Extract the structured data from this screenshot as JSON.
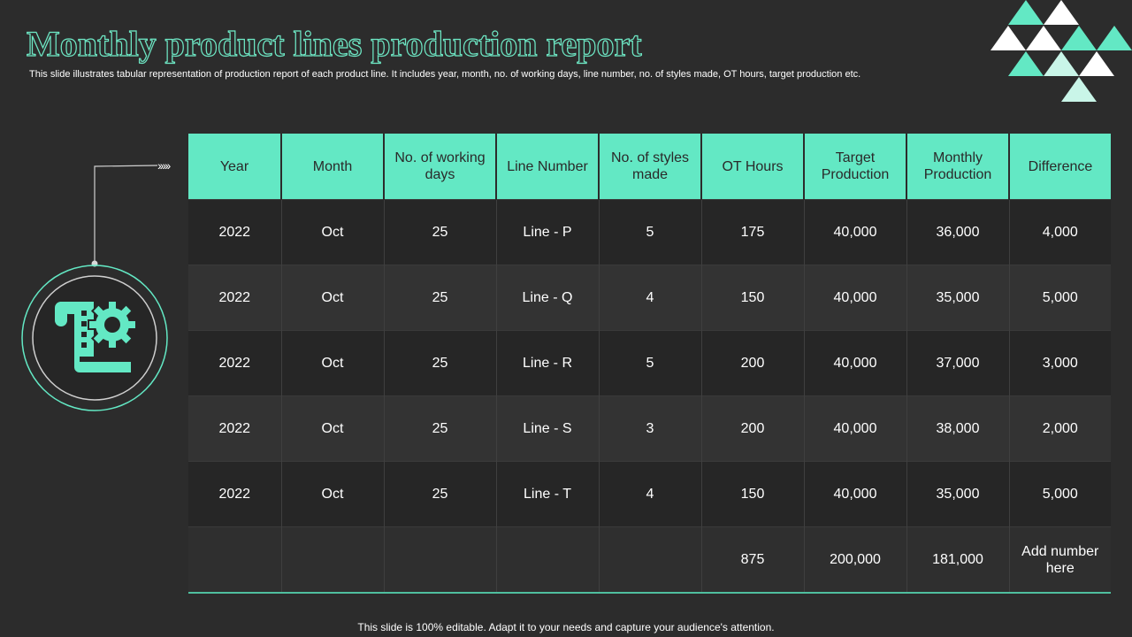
{
  "header": {
    "title": "Monthly product lines production report",
    "subtitle": "This slide illustrates tabular representation of production report of each product line. It includes year, month, no. of working days, line number, no. of styles made, OT hours, target production etc."
  },
  "colors": {
    "accent": "#63e8c4",
    "background": "#2c2c2c",
    "accent_light": "#c9f5e8"
  },
  "decoration": {
    "icon": "production-report-gear-icon",
    "pattern": "triangle-pattern"
  },
  "table": {
    "columns": [
      "Year",
      "Month",
      "No. of working days",
      "Line Number",
      "No. of styles made",
      "OT Hours",
      "Target Production",
      "Monthly Production",
      "Difference"
    ],
    "rows": [
      [
        "2022",
        "Oct",
        "25",
        "Line - P",
        "5",
        "175",
        "40,000",
        "36,000",
        "4,000"
      ],
      [
        "2022",
        "Oct",
        "25",
        "Line - Q",
        "4",
        "150",
        "40,000",
        "35,000",
        "5,000"
      ],
      [
        "2022",
        "Oct",
        "25",
        "Line - R",
        "5",
        "200",
        "40,000",
        "37,000",
        "3,000"
      ],
      [
        "2022",
        "Oct",
        "25",
        "Line - S",
        "3",
        "200",
        "40,000",
        "38,000",
        "2,000"
      ],
      [
        "2022",
        "Oct",
        "25",
        "Line - T",
        "4",
        "150",
        "40,000",
        "35,000",
        "5,000"
      ]
    ],
    "totals": [
      "",
      "",
      "",
      "",
      "",
      "875",
      "200,000",
      "181,000",
      "Add number here"
    ]
  },
  "footer": {
    "text": "This slide is 100% editable. Adapt it to your needs and capture your audience's attention."
  }
}
